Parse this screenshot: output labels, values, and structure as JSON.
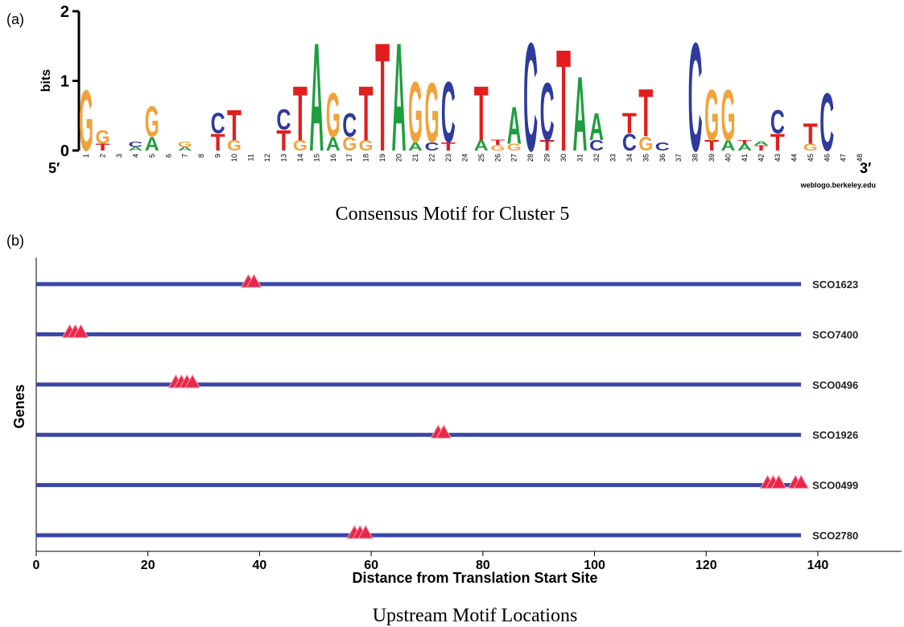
{
  "chart_data": [
    {
      "type": "logo",
      "panel": "(a)",
      "title": "Consensus Motif for Cluster 5",
      "ylabel": "bits",
      "left_end": "5′",
      "right_end": "3′",
      "credit": "weblogo.berkeley.edu",
      "ylim": [
        0,
        2
      ],
      "yticks": [
        0,
        1,
        2
      ],
      "colors": {
        "A": "#1e9e3e",
        "C": "#2e3a9c",
        "G": "#f2a23a",
        "T": "#e21d1d"
      },
      "categories": [
        "1",
        "2",
        "3",
        "4",
        "5",
        "6",
        "7",
        "8",
        "9",
        "10",
        "11",
        "12",
        "13",
        "14",
        "15",
        "16",
        "17",
        "18",
        "19",
        "20",
        "21",
        "22",
        "23",
        "24",
        "25",
        "26",
        "27",
        "28",
        "29",
        "30",
        "31",
        "32",
        "33",
        "34",
        "35",
        "36",
        "37",
        "38",
        "39",
        "40",
        "41",
        "42",
        "43",
        "44",
        "45",
        "46",
        "47",
        "48"
      ],
      "stacks": [
        [
          {
            "letter": "G",
            "bits": 0.9
          }
        ],
        [
          {
            "letter": "T",
            "bits": 0.1
          },
          {
            "letter": "G",
            "bits": 0.2
          }
        ],
        [],
        [
          {
            "letter": "A",
            "bits": 0.05
          },
          {
            "letter": "C",
            "bits": 0.08
          }
        ],
        [
          {
            "letter": "A",
            "bits": 0.2
          },
          {
            "letter": "G",
            "bits": 0.45
          }
        ],
        [],
        [
          {
            "letter": "A",
            "bits": 0.05
          },
          {
            "letter": "G",
            "bits": 0.08
          }
        ],
        [],
        [
          {
            "letter": "T",
            "bits": 0.25
          },
          {
            "letter": "C",
            "bits": 0.3
          }
        ],
        [
          {
            "letter": "G",
            "bits": 0.15
          },
          {
            "letter": "T",
            "bits": 0.45
          }
        ],
        [],
        [],
        [
          {
            "letter": "T",
            "bits": 0.3
          },
          {
            "letter": "C",
            "bits": 0.3
          }
        ],
        [
          {
            "letter": "G",
            "bits": 0.15
          },
          {
            "letter": "T",
            "bits": 0.8
          }
        ],
        [
          {
            "letter": "A",
            "bits": 1.6
          }
        ],
        [
          {
            "letter": "A",
            "bits": 0.2
          },
          {
            "letter": "G",
            "bits": 0.65
          }
        ],
        [
          {
            "letter": "G",
            "bits": 0.2
          },
          {
            "letter": "C",
            "bits": 0.35
          }
        ],
        [
          {
            "letter": "G",
            "bits": 0.15
          },
          {
            "letter": "T",
            "bits": 0.8
          }
        ],
        [
          {
            "letter": "T",
            "bits": 1.6
          }
        ],
        [
          {
            "letter": "A",
            "bits": 1.6
          }
        ],
        [
          {
            "letter": "A",
            "bits": 0.12
          },
          {
            "letter": "G",
            "bits": 0.9
          }
        ],
        [
          {
            "letter": "C",
            "bits": 0.12
          },
          {
            "letter": "G",
            "bits": 0.88
          }
        ],
        [
          {
            "letter": "T",
            "bits": 0.12
          },
          {
            "letter": "C",
            "bits": 0.9
          }
        ],
        [],
        [
          {
            "letter": "A",
            "bits": 0.15
          },
          {
            "letter": "T",
            "bits": 0.8
          }
        ],
        [
          {
            "letter": "G",
            "bits": 0.08
          },
          {
            "letter": "T",
            "bits": 0.08
          }
        ],
        [
          {
            "letter": "G",
            "bits": 0.1
          },
          {
            "letter": "A",
            "bits": 0.55
          }
        ],
        [
          {
            "letter": "C",
            "bits": 1.6
          }
        ],
        [
          {
            "letter": "T",
            "bits": 0.15
          },
          {
            "letter": "C",
            "bits": 0.85
          }
        ],
        [
          {
            "letter": "T",
            "bits": 1.5
          }
        ],
        [
          {
            "letter": "A",
            "bits": 1.1
          }
        ],
        [
          {
            "letter": "C",
            "bits": 0.15
          },
          {
            "letter": "A",
            "bits": 0.4
          }
        ],
        [],
        [
          {
            "letter": "C",
            "bits": 0.25
          },
          {
            "letter": "T",
            "bits": 0.3
          }
        ],
        [
          {
            "letter": "G",
            "bits": 0.2
          },
          {
            "letter": "T",
            "bits": 0.7
          }
        ],
        [
          {
            "letter": "C",
            "bits": 0.12
          }
        ],
        [],
        [
          {
            "letter": "C",
            "bits": 1.6
          }
        ],
        [
          {
            "letter": "T",
            "bits": 0.15
          },
          {
            "letter": "G",
            "bits": 0.75
          }
        ],
        [
          {
            "letter": "A",
            "bits": 0.15
          },
          {
            "letter": "G",
            "bits": 0.75
          }
        ],
        [
          {
            "letter": "A",
            "bits": 0.1
          },
          {
            "letter": "T",
            "bits": 0.05
          }
        ],
        [
          {
            "letter": "T",
            "bits": 0.08
          },
          {
            "letter": "A",
            "bits": 0.05
          }
        ],
        [
          {
            "letter": "T",
            "bits": 0.25
          },
          {
            "letter": "C",
            "bits": 0.35
          }
        ],
        [],
        [
          {
            "letter": "G",
            "bits": 0.1
          },
          {
            "letter": "T",
            "bits": 0.3
          }
        ],
        [
          {
            "letter": "C",
            "bits": 0.85
          }
        ],
        [],
        []
      ]
    },
    {
      "type": "motif-locations",
      "panel": "(b)",
      "title": "Upstream Motif Locations",
      "xlabel": "Distance from Translation Start Site",
      "ylabel": "Genes",
      "xlim": [
        0,
        155
      ],
      "xticks": [
        0,
        20,
        40,
        60,
        80,
        100,
        120,
        140
      ],
      "line_color": "#3a47a8",
      "marker_color": "#e8284a",
      "series": [
        {
          "name": "SCO1623",
          "length": 137,
          "positions": [
            38,
            39
          ]
        },
        {
          "name": "SCO7400",
          "length": 137,
          "positions": [
            6,
            7,
            8
          ]
        },
        {
          "name": "SCO0496",
          "length": 137,
          "positions": [
            25,
            26,
            27,
            28
          ]
        },
        {
          "name": "SCO1926",
          "length": 137,
          "positions": [
            72,
            73
          ]
        },
        {
          "name": "SCO0499",
          "length": 137,
          "positions": [
            131,
            132,
            133,
            136,
            137
          ]
        },
        {
          "name": "SCO2780",
          "length": 137,
          "positions": [
            57,
            58,
            59
          ]
        }
      ]
    }
  ]
}
